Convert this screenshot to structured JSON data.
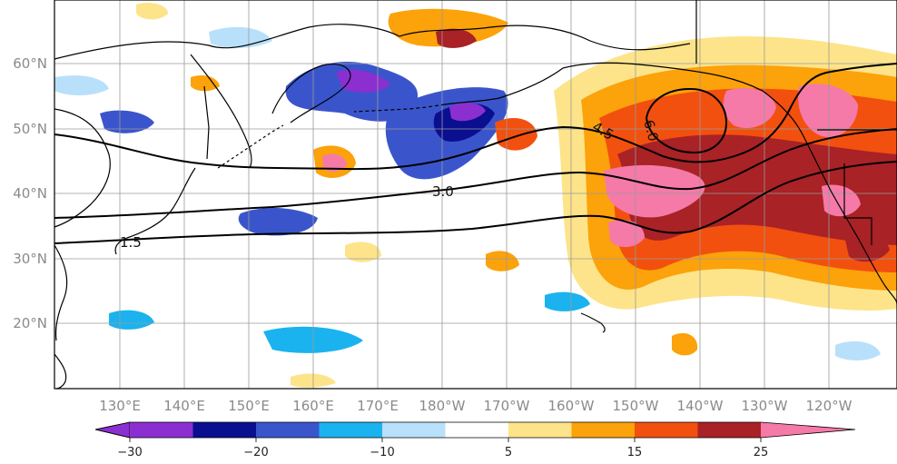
{
  "map": {
    "lat_labels": [
      "60°N",
      "50°N",
      "40°N",
      "30°N",
      "20°N"
    ],
    "lon_labels": [
      "130°E",
      "140°E",
      "150°E",
      "160°E",
      "170°E",
      "180°W",
      "170°W",
      "160°W",
      "150°W",
      "140°W",
      "130°W",
      "120°W"
    ],
    "contour_labels": [
      "1.5",
      "3.0",
      "4.5",
      "6.0"
    ]
  },
  "colorbar": {
    "tick_labels": [
      "−30",
      "−20",
      "−10",
      "5",
      "15",
      "25"
    ],
    "colors": [
      "#8b2fd1",
      "#0a0f8f",
      "#3a55cc",
      "#1ab3ef",
      "#b9e0fb",
      "#ffffff",
      "#fde48a",
      "#fca20a",
      "#f2500f",
      "#a82226",
      "#f57aa8"
    ]
  }
}
